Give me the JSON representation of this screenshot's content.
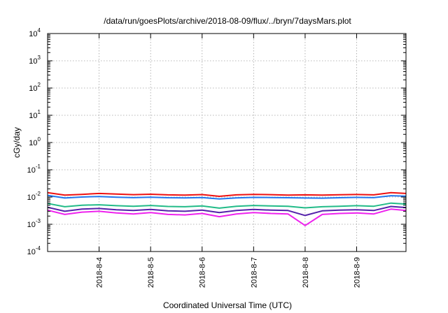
{
  "chart_data": {
    "type": "line",
    "title": "/data/run/goesPlots/archive/2018-08-09/flux/../bryn/7daysMars.plot",
    "xlabel": "Coordinated Universal Time (UTC)",
    "ylabel": "cGy/day",
    "yscale": "log",
    "ylim": [
      0.0001,
      10000
    ],
    "y_ticks": [
      {
        "base": "10",
        "exp": "-4",
        "value": 0.0001
      },
      {
        "base": "10",
        "exp": "-3",
        "value": 0.001
      },
      {
        "base": "10",
        "exp": "-2",
        "value": 0.01
      },
      {
        "base": "10",
        "exp": "-1",
        "value": 0.1
      },
      {
        "base": "10",
        "exp": "0",
        "value": 1
      },
      {
        "base": "10",
        "exp": "1",
        "value": 10
      },
      {
        "base": "10",
        "exp": "2",
        "value": 100
      },
      {
        "base": "10",
        "exp": "3",
        "value": 1000
      },
      {
        "base": "10",
        "exp": "4",
        "value": 10000
      }
    ],
    "xlim": [
      "2018-08-03T00:00",
      "2018-08-09T23:00"
    ],
    "x_ticks": [
      "2018-8-4",
      "2018-8-5",
      "2018-8-6",
      "2018-8-7",
      "2018-8-8",
      "2018-8-9"
    ],
    "x": [
      "2018-08-03T00:00",
      "2018-08-03T08:00",
      "2018-08-03T16:00",
      "2018-08-04T00:00",
      "2018-08-04T08:00",
      "2018-08-04T16:00",
      "2018-08-05T00:00",
      "2018-08-05T08:00",
      "2018-08-05T16:00",
      "2018-08-06T00:00",
      "2018-08-06T08:00",
      "2018-08-06T16:00",
      "2018-08-07T00:00",
      "2018-08-07T08:00",
      "2018-08-07T16:00",
      "2018-08-08T00:00",
      "2018-08-08T08:00",
      "2018-08-08T16:00",
      "2018-08-09T00:00",
      "2018-08-09T08:00",
      "2018-08-09T16:00",
      "2018-08-09T23:00"
    ],
    "series": [
      {
        "color": "#ee1111",
        "values": [
          0.0145,
          0.0118,
          0.0125,
          0.0135,
          0.0128,
          0.0122,
          0.0127,
          0.012,
          0.0118,
          0.0123,
          0.0106,
          0.012,
          0.0125,
          0.0122,
          0.0118,
          0.012,
          0.0117,
          0.0121,
          0.0124,
          0.012,
          0.0145,
          0.0135
        ]
      },
      {
        "color": "#2277ee",
        "values": [
          0.0115,
          0.0092,
          0.01,
          0.0105,
          0.0098,
          0.0095,
          0.0099,
          0.0094,
          0.0093,
          0.0096,
          0.0085,
          0.0093,
          0.0097,
          0.0096,
          0.0094,
          0.0092,
          0.0091,
          0.0094,
          0.0097,
          0.0095,
          0.0112,
          0.0108
        ]
      },
      {
        "color": "#22bb88",
        "values": [
          0.0058,
          0.0044,
          0.005,
          0.0052,
          0.0048,
          0.0046,
          0.0049,
          0.0045,
          0.0044,
          0.0047,
          0.0039,
          0.0046,
          0.0049,
          0.0047,
          0.0046,
          0.004,
          0.0044,
          0.0046,
          0.0048,
          0.0046,
          0.006,
          0.0055
        ]
      },
      {
        "color": "#5522aa",
        "values": [
          0.0042,
          0.003,
          0.0036,
          0.0038,
          0.0034,
          0.0032,
          0.0035,
          0.0031,
          0.003,
          0.0033,
          0.0027,
          0.0032,
          0.0035,
          0.0033,
          0.0032,
          0.0021,
          0.0031,
          0.0033,
          0.0034,
          0.0032,
          0.0045,
          0.0041
        ]
      },
      {
        "color": "#ee22ee",
        "values": [
          0.0033,
          0.0023,
          0.0028,
          0.003,
          0.0026,
          0.0024,
          0.0027,
          0.0023,
          0.0022,
          0.0025,
          0.0019,
          0.0024,
          0.0027,
          0.0025,
          0.0024,
          0.0009,
          0.0023,
          0.0025,
          0.0026,
          0.0024,
          0.0036,
          0.0032
        ]
      }
    ],
    "grid": true,
    "legend": "none"
  }
}
